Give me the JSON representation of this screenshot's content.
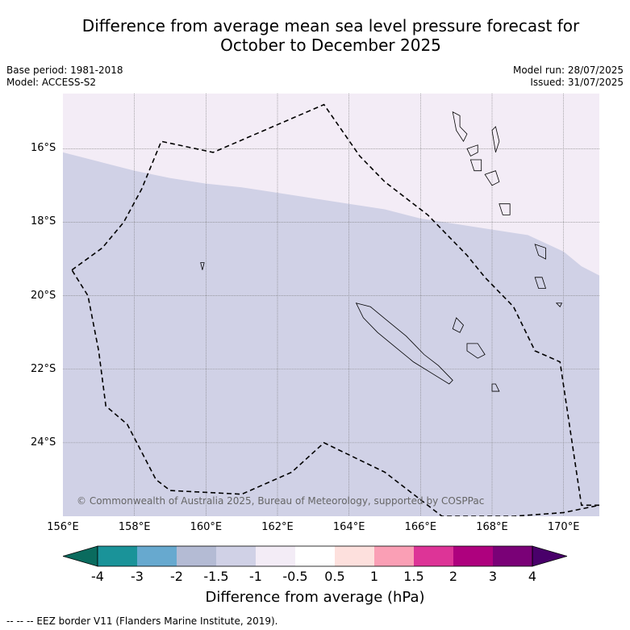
{
  "title_line1": "Difference from average mean sea level pressure forecast for",
  "title_line2": "October to December 2025",
  "base_period": "Base period: 1981-2018",
  "model": "Model: ACCESS-S2",
  "model_run": "Model run: 28/07/2025",
  "issued": "Issued: 31/07/2025",
  "credit": "© Commonwealth of Australia 2025, Bureau of Meteorology, supported by COSPPac",
  "footer": "--  --  -- EEZ border V11 (Flanders Marine Institute, 2019).",
  "colorbar_title": "Difference from average (hPa)",
  "lat_labels": [
    "16°S",
    "18°S",
    "20°S",
    "22°S",
    "24°S"
  ],
  "lon_labels": [
    "156°E",
    "158°E",
    "160°E",
    "162°E",
    "164°E",
    "166°E",
    "168°E",
    "170°E"
  ],
  "colorbar_ticks": [
    "-4",
    "-3",
    "-2",
    "-1.5",
    "-1",
    "-0.5",
    "0.5",
    "1",
    "1.5",
    "2",
    "3",
    "4"
  ],
  "colors": {
    "below_min": "#0a6b5e",
    "bins": [
      "#1a9399",
      "#67a9cf",
      "#b4bbd4",
      "#d0d1e6",
      "#f3ecf6",
      "#ffffff",
      "#fde0dd",
      "#fa9fb5",
      "#dd3497",
      "#ae017e",
      "#7a0177"
    ],
    "above_max": "#49006a",
    "negative_region": "#d0d1e6",
    "neutral_region": "#f3ecf6"
  },
  "chart_data": {
    "type": "heatmap",
    "xlim": [
      156,
      171
    ],
    "ylim": [
      -26,
      -14.5
    ],
    "xlabel": "",
    "ylabel": "",
    "grid": true,
    "regions": [
      {
        "category": "-1.5 to -1",
        "color": "#d0d1e6",
        "area": "south of boundary"
      },
      {
        "category": "-1 to -0.5",
        "color": "#f3ecf6",
        "area": "north of boundary"
      }
    ],
    "boundary_lon": [
      156,
      157,
      158,
      159,
      160,
      161,
      162,
      163,
      164,
      165,
      166,
      167,
      168,
      169,
      170,
      170.5,
      171
    ],
    "boundary_lat": [
      -16.1,
      -16.35,
      -16.6,
      -16.8,
      -16.95,
      -17.05,
      -17.2,
      -17.35,
      -17.5,
      -17.65,
      -17.9,
      -18.05,
      -18.2,
      -18.35,
      -18.8,
      -19.2,
      -19.45
    ],
    "eez_lon": [
      156.25,
      157.1,
      157.7,
      158.2,
      158.75,
      160.2,
      163.3,
      164.3,
      165,
      166.2,
      167.3,
      167.8,
      168.6,
      169.2,
      169.9,
      170.5,
      171,
      170.0,
      168.6,
      166.6,
      165.8,
      165,
      163.3,
      162.4,
      161.0,
      159.0,
      158.6,
      157.8,
      157.2,
      157.0,
      156.7,
      156.25
    ],
    "eez_lat": [
      -19.3,
      -18.7,
      -18.0,
      -17.1,
      -15.8,
      -16.1,
      -14.8,
      -16.2,
      -16.9,
      -17.8,
      -18.9,
      -19.5,
      -20.3,
      -21.5,
      -21.8,
      -25.7,
      -25.7,
      -25.9,
      -26.0,
      -26.0,
      -25.4,
      -24.8,
      -24.0,
      -24.8,
      -25.4,
      -25.3,
      -25.0,
      -23.5,
      -23.0,
      -21.5,
      -20.0,
      -19.3
    ],
    "islands": [
      {
        "lon": [
          164.2,
          164.6,
          165.1,
          165.6,
          166.1,
          166.5,
          166.9,
          166.8,
          166.3,
          165.8,
          165.3,
          164.8,
          164.4,
          164.2
        ],
        "lat": [
          -20.2,
          -20.3,
          -20.7,
          -21.1,
          -21.6,
          -21.9,
          -22.3,
          -22.4,
          -22.1,
          -21.8,
          -21.4,
          -21.0,
          -20.6,
          -20.2
        ]
      },
      {
        "lon": [
          167.0,
          167.2,
          167.1,
          166.9,
          167.0
        ],
        "lat": [
          -20.6,
          -20.8,
          -21.0,
          -20.9,
          -20.6
        ]
      },
      {
        "lon": [
          167.3,
          167.6,
          167.8,
          167.6,
          167.3,
          167.3
        ],
        "lat": [
          -21.3,
          -21.3,
          -21.6,
          -21.7,
          -21.5,
          -21.3
        ]
      },
      {
        "lon": [
          168.0,
          168.1,
          168.2,
          168.0,
          168.0
        ],
        "lat": [
          -22.4,
          -22.4,
          -22.6,
          -22.6,
          -22.4
        ]
      },
      {
        "lon": [
          166.9,
          167.1,
          167.1,
          167.3,
          167.2,
          167.0,
          166.9
        ],
        "lat": [
          -15.0,
          -15.1,
          -15.4,
          -15.6,
          -15.8,
          -15.5,
          -15.0
        ]
      },
      {
        "lon": [
          167.3,
          167.6,
          167.6,
          167.4,
          167.3
        ],
        "lat": [
          -16.0,
          -15.9,
          -16.1,
          -16.2,
          -16.0
        ]
      },
      {
        "lon": [
          168.0,
          168.1,
          168.2,
          168.1,
          168.0
        ],
        "lat": [
          -15.5,
          -15.4,
          -15.8,
          -16.1,
          -15.5
        ]
      },
      {
        "lon": [
          167.4,
          167.7,
          167.7,
          167.5,
          167.4
        ],
        "lat": [
          -16.3,
          -16.3,
          -16.6,
          -16.6,
          -16.3
        ]
      },
      {
        "lon": [
          167.8,
          168.1,
          168.2,
          168.0,
          167.8
        ],
        "lat": [
          -16.7,
          -16.6,
          -16.9,
          -17.0,
          -16.7
        ]
      },
      {
        "lon": [
          168.2,
          168.5,
          168.5,
          168.3,
          168.2
        ],
        "lat": [
          -17.5,
          -17.5,
          -17.8,
          -17.8,
          -17.5
        ]
      },
      {
        "lon": [
          169.2,
          169.5,
          169.5,
          169.3,
          169.2
        ],
        "lat": [
          -18.6,
          -18.7,
          -19.0,
          -18.9,
          -18.6
        ]
      },
      {
        "lon": [
          169.2,
          169.4,
          169.5,
          169.3,
          169.2
        ],
        "lat": [
          -19.5,
          -19.5,
          -19.8,
          -19.8,
          -19.5
        ]
      },
      {
        "lon": [
          169.8,
          169.95,
          169.9,
          169.8
        ],
        "lat": [
          -20.2,
          -20.2,
          -20.3,
          -20.2
        ]
      },
      {
        "lon": [
          159.85,
          159.95,
          159.9,
          159.85
        ],
        "lat": [
          -19.1,
          -19.1,
          -19.3,
          -19.1
        ]
      }
    ]
  }
}
